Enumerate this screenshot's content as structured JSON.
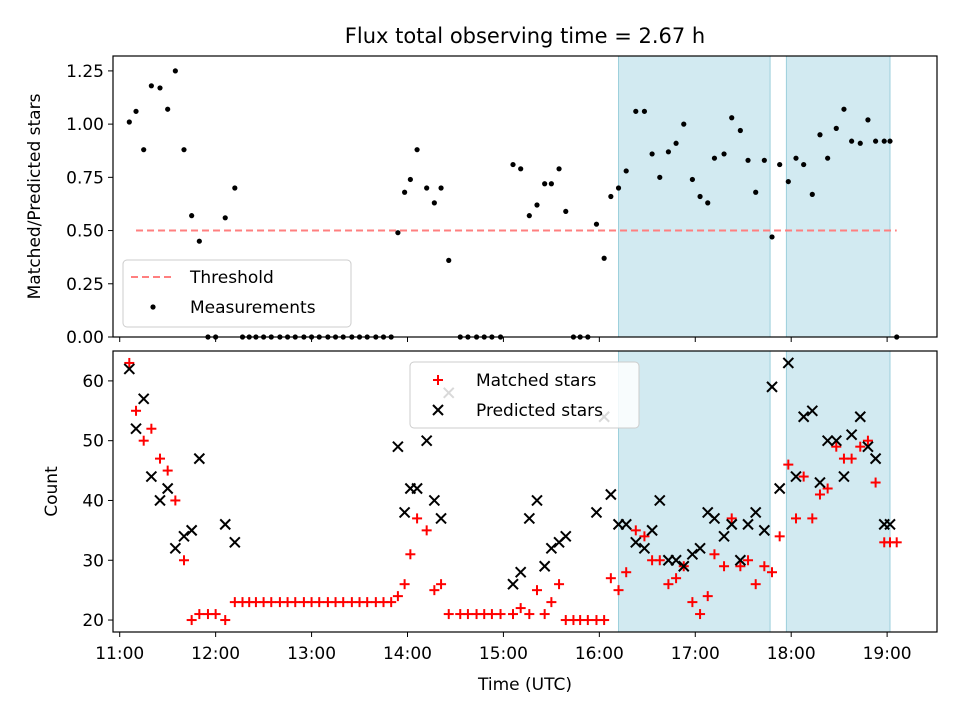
{
  "figure_title": "Flux total observing time = 2.67 h",
  "chart_data": [
    {
      "type": "scatter",
      "panel": "top",
      "ylabel": "Matched/Predicted stars",
      "xlabel": "",
      "xlim": [
        10.93,
        19.52
      ],
      "ylim": [
        0,
        1.32
      ],
      "x_ticks": [
        "11:00",
        "12:00",
        "13:00",
        "14:00",
        "15:00",
        "16:00",
        "17:00",
        "18:00",
        "19:00"
      ],
      "y_ticks": [
        "0.00",
        "0.25",
        "0.50",
        "0.75",
        "1.00",
        "1.25"
      ],
      "y_tick_values": [
        0,
        0.25,
        0.5,
        0.75,
        1.0,
        1.25
      ],
      "grid": false,
      "legend_position": "lower-left",
      "shaded_regions_x": [
        [
          16.2,
          17.78
        ],
        [
          17.95,
          19.03
        ]
      ],
      "threshold": {
        "name": "Threshold",
        "y": 0.5,
        "x_range": [
          11.17,
          19.1
        ],
        "color": "#ff7f7f"
      },
      "series": [
        {
          "name": "Measurements",
          "color": "#000000",
          "x": [
            11.1,
            11.17,
            11.25,
            11.33,
            11.42,
            11.5,
            11.58,
            11.67,
            11.75,
            11.83,
            11.92,
            12.0,
            12.1,
            12.2,
            12.28,
            12.35,
            12.42,
            12.5,
            12.58,
            12.67,
            12.75,
            12.83,
            12.92,
            13.0,
            13.08,
            13.17,
            13.25,
            13.33,
            13.42,
            13.5,
            13.58,
            13.67,
            13.75,
            13.83,
            13.9,
            13.97,
            14.03,
            14.1,
            14.2,
            14.28,
            14.35,
            14.43,
            14.55,
            14.63,
            14.72,
            14.8,
            14.88,
            14.97,
            15.1,
            15.18,
            15.27,
            15.35,
            15.43,
            15.5,
            15.58,
            15.65,
            15.73,
            15.8,
            15.88,
            15.97,
            16.05,
            16.12,
            16.2,
            16.28,
            16.38,
            16.47,
            16.55,
            16.63,
            16.72,
            16.8,
            16.88,
            16.97,
            17.05,
            17.13,
            17.2,
            17.3,
            17.38,
            17.47,
            17.55,
            17.63,
            17.72,
            17.8,
            17.88,
            17.97,
            18.05,
            18.13,
            18.22,
            18.3,
            18.38,
            18.47,
            18.55,
            18.63,
            18.72,
            18.8,
            18.88,
            18.97,
            19.03,
            19.1
          ],
          "y": [
            1.01,
            1.06,
            0.88,
            1.18,
            1.17,
            1.07,
            1.25,
            0.88,
            0.57,
            0.45,
            0,
            0,
            0.56,
            0.7,
            0,
            0,
            0,
            0,
            0,
            0,
            0,
            0,
            0,
            0,
            0,
            0,
            0,
            0,
            0,
            0,
            0,
            0,
            0,
            0,
            0.49,
            0.68,
            0.74,
            0.88,
            0.7,
            0.63,
            0.7,
            0.36,
            0,
            0,
            0,
            0,
            0,
            0,
            0.81,
            0.79,
            0.57,
            0.62,
            0.72,
            0.72,
            0.79,
            0.59,
            0,
            0,
            0,
            0.53,
            0.37,
            0.66,
            0.7,
            0.78,
            1.06,
            1.06,
            0.86,
            0.75,
            0.87,
            0.91,
            1.0,
            0.74,
            0.66,
            0.63,
            0.84,
            0.86,
            1.03,
            0.97,
            0.83,
            0.68,
            0.83,
            0.47,
            0.81,
            0.73,
            0.84,
            0.81,
            0.67,
            0.95,
            0.84,
            0.98,
            1.07,
            0.92,
            0.91,
            1.02,
            0.92,
            0.92,
            0.92,
            0
          ]
        }
      ]
    },
    {
      "type": "scatter",
      "panel": "bottom",
      "ylabel": "Count",
      "xlabel": "Time (UTC)",
      "xlim": [
        10.93,
        19.52
      ],
      "ylim": [
        18,
        65
      ],
      "x_ticks": [
        "11:00",
        "12:00",
        "13:00",
        "14:00",
        "15:00",
        "16:00",
        "17:00",
        "18:00",
        "19:00"
      ],
      "y_ticks": [
        "20",
        "30",
        "40",
        "50",
        "60"
      ],
      "y_tick_values": [
        20,
        30,
        40,
        50,
        60
      ],
      "grid": false,
      "legend_position": "top-center",
      "shaded_regions_x": [
        [
          16.2,
          17.78
        ],
        [
          17.95,
          19.03
        ]
      ],
      "series": [
        {
          "name": "Matched stars",
          "color": "#ff0000",
          "marker": "plus",
          "x": [
            11.1,
            11.17,
            11.25,
            11.33,
            11.42,
            11.5,
            11.58,
            11.67,
            11.75,
            11.83,
            11.92,
            12.0,
            12.1,
            12.2,
            12.28,
            12.35,
            12.42,
            12.5,
            12.58,
            12.67,
            12.75,
            12.83,
            12.92,
            13.0,
            13.08,
            13.17,
            13.25,
            13.33,
            13.42,
            13.5,
            13.58,
            13.67,
            13.75,
            13.83,
            13.9,
            13.97,
            14.03,
            14.1,
            14.2,
            14.28,
            14.35,
            14.43,
            14.55,
            14.63,
            14.72,
            14.8,
            14.88,
            14.97,
            15.1,
            15.18,
            15.27,
            15.35,
            15.43,
            15.5,
            15.58,
            15.65,
            15.73,
            15.8,
            15.88,
            15.97,
            16.05,
            16.12,
            16.2,
            16.28,
            16.38,
            16.47,
            16.55,
            16.63,
            16.72,
            16.8,
            16.88,
            16.97,
            17.05,
            17.13,
            17.2,
            17.3,
            17.38,
            17.47,
            17.55,
            17.63,
            17.72,
            17.8,
            17.88,
            17.97,
            18.05,
            18.13,
            18.22,
            18.3,
            18.38,
            18.47,
            18.55,
            18.63,
            18.72,
            18.8,
            18.88,
            18.97,
            19.03,
            19.1
          ],
          "y": [
            63,
            55,
            50,
            52,
            47,
            45,
            40,
            30,
            20,
            21,
            21,
            21,
            20,
            23,
            23,
            23,
            23,
            23,
            23,
            23,
            23,
            23,
            23,
            23,
            23,
            23,
            23,
            23,
            23,
            23,
            23,
            23,
            23,
            23,
            24,
            26,
            31,
            37,
            35,
            25,
            26,
            21,
            21,
            21,
            21,
            21,
            21,
            21,
            21,
            22,
            21,
            25,
            21,
            23,
            26,
            20,
            20,
            20,
            20,
            20,
            20,
            27,
            25,
            28,
            35,
            34,
            30,
            30,
            26,
            27,
            29,
            23,
            21,
            24,
            31,
            29,
            37,
            29,
            30,
            26,
            29,
            28,
            34,
            46,
            37,
            44,
            37,
            41,
            42,
            49,
            47,
            47,
            49,
            50,
            43,
            33,
            33,
            33
          ]
        },
        {
          "name": "Predicted stars",
          "color": "#000000",
          "marker": "x",
          "x": [
            11.1,
            11.17,
            11.25,
            11.33,
            11.42,
            11.5,
            11.58,
            11.67,
            11.75,
            11.83,
            12.1,
            12.2,
            13.9,
            13.97,
            14.03,
            14.1,
            14.2,
            14.28,
            14.35,
            14.43,
            15.1,
            15.18,
            15.27,
            15.35,
            15.43,
            15.5,
            15.58,
            15.65,
            15.97,
            16.05,
            16.12,
            16.2,
            16.28,
            16.38,
            16.47,
            16.55,
            16.63,
            16.72,
            16.8,
            16.88,
            16.97,
            17.05,
            17.13,
            17.2,
            17.3,
            17.38,
            17.47,
            17.55,
            17.63,
            17.72,
            17.8,
            17.88,
            17.97,
            18.05,
            18.13,
            18.22,
            18.3,
            18.38,
            18.47,
            18.55,
            18.63,
            18.72,
            18.8,
            18.88,
            18.97,
            19.03
          ],
          "y": [
            62,
            52,
            57,
            44,
            40,
            42,
            32,
            34,
            35,
            47,
            36,
            33,
            49,
            38,
            42,
            42,
            50,
            40,
            37,
            58,
            26,
            28,
            37,
            40,
            29,
            32,
            33,
            34,
            38,
            54,
            41,
            36,
            36,
            33,
            32,
            35,
            40,
            30,
            30,
            29,
            31,
            32,
            38,
            37,
            34,
            36,
            30,
            36,
            38,
            35,
            59,
            42,
            63,
            44,
            54,
            55,
            43,
            50,
            50,
            44,
            51,
            54,
            49,
            47,
            36,
            36
          ]
        }
      ]
    }
  ]
}
